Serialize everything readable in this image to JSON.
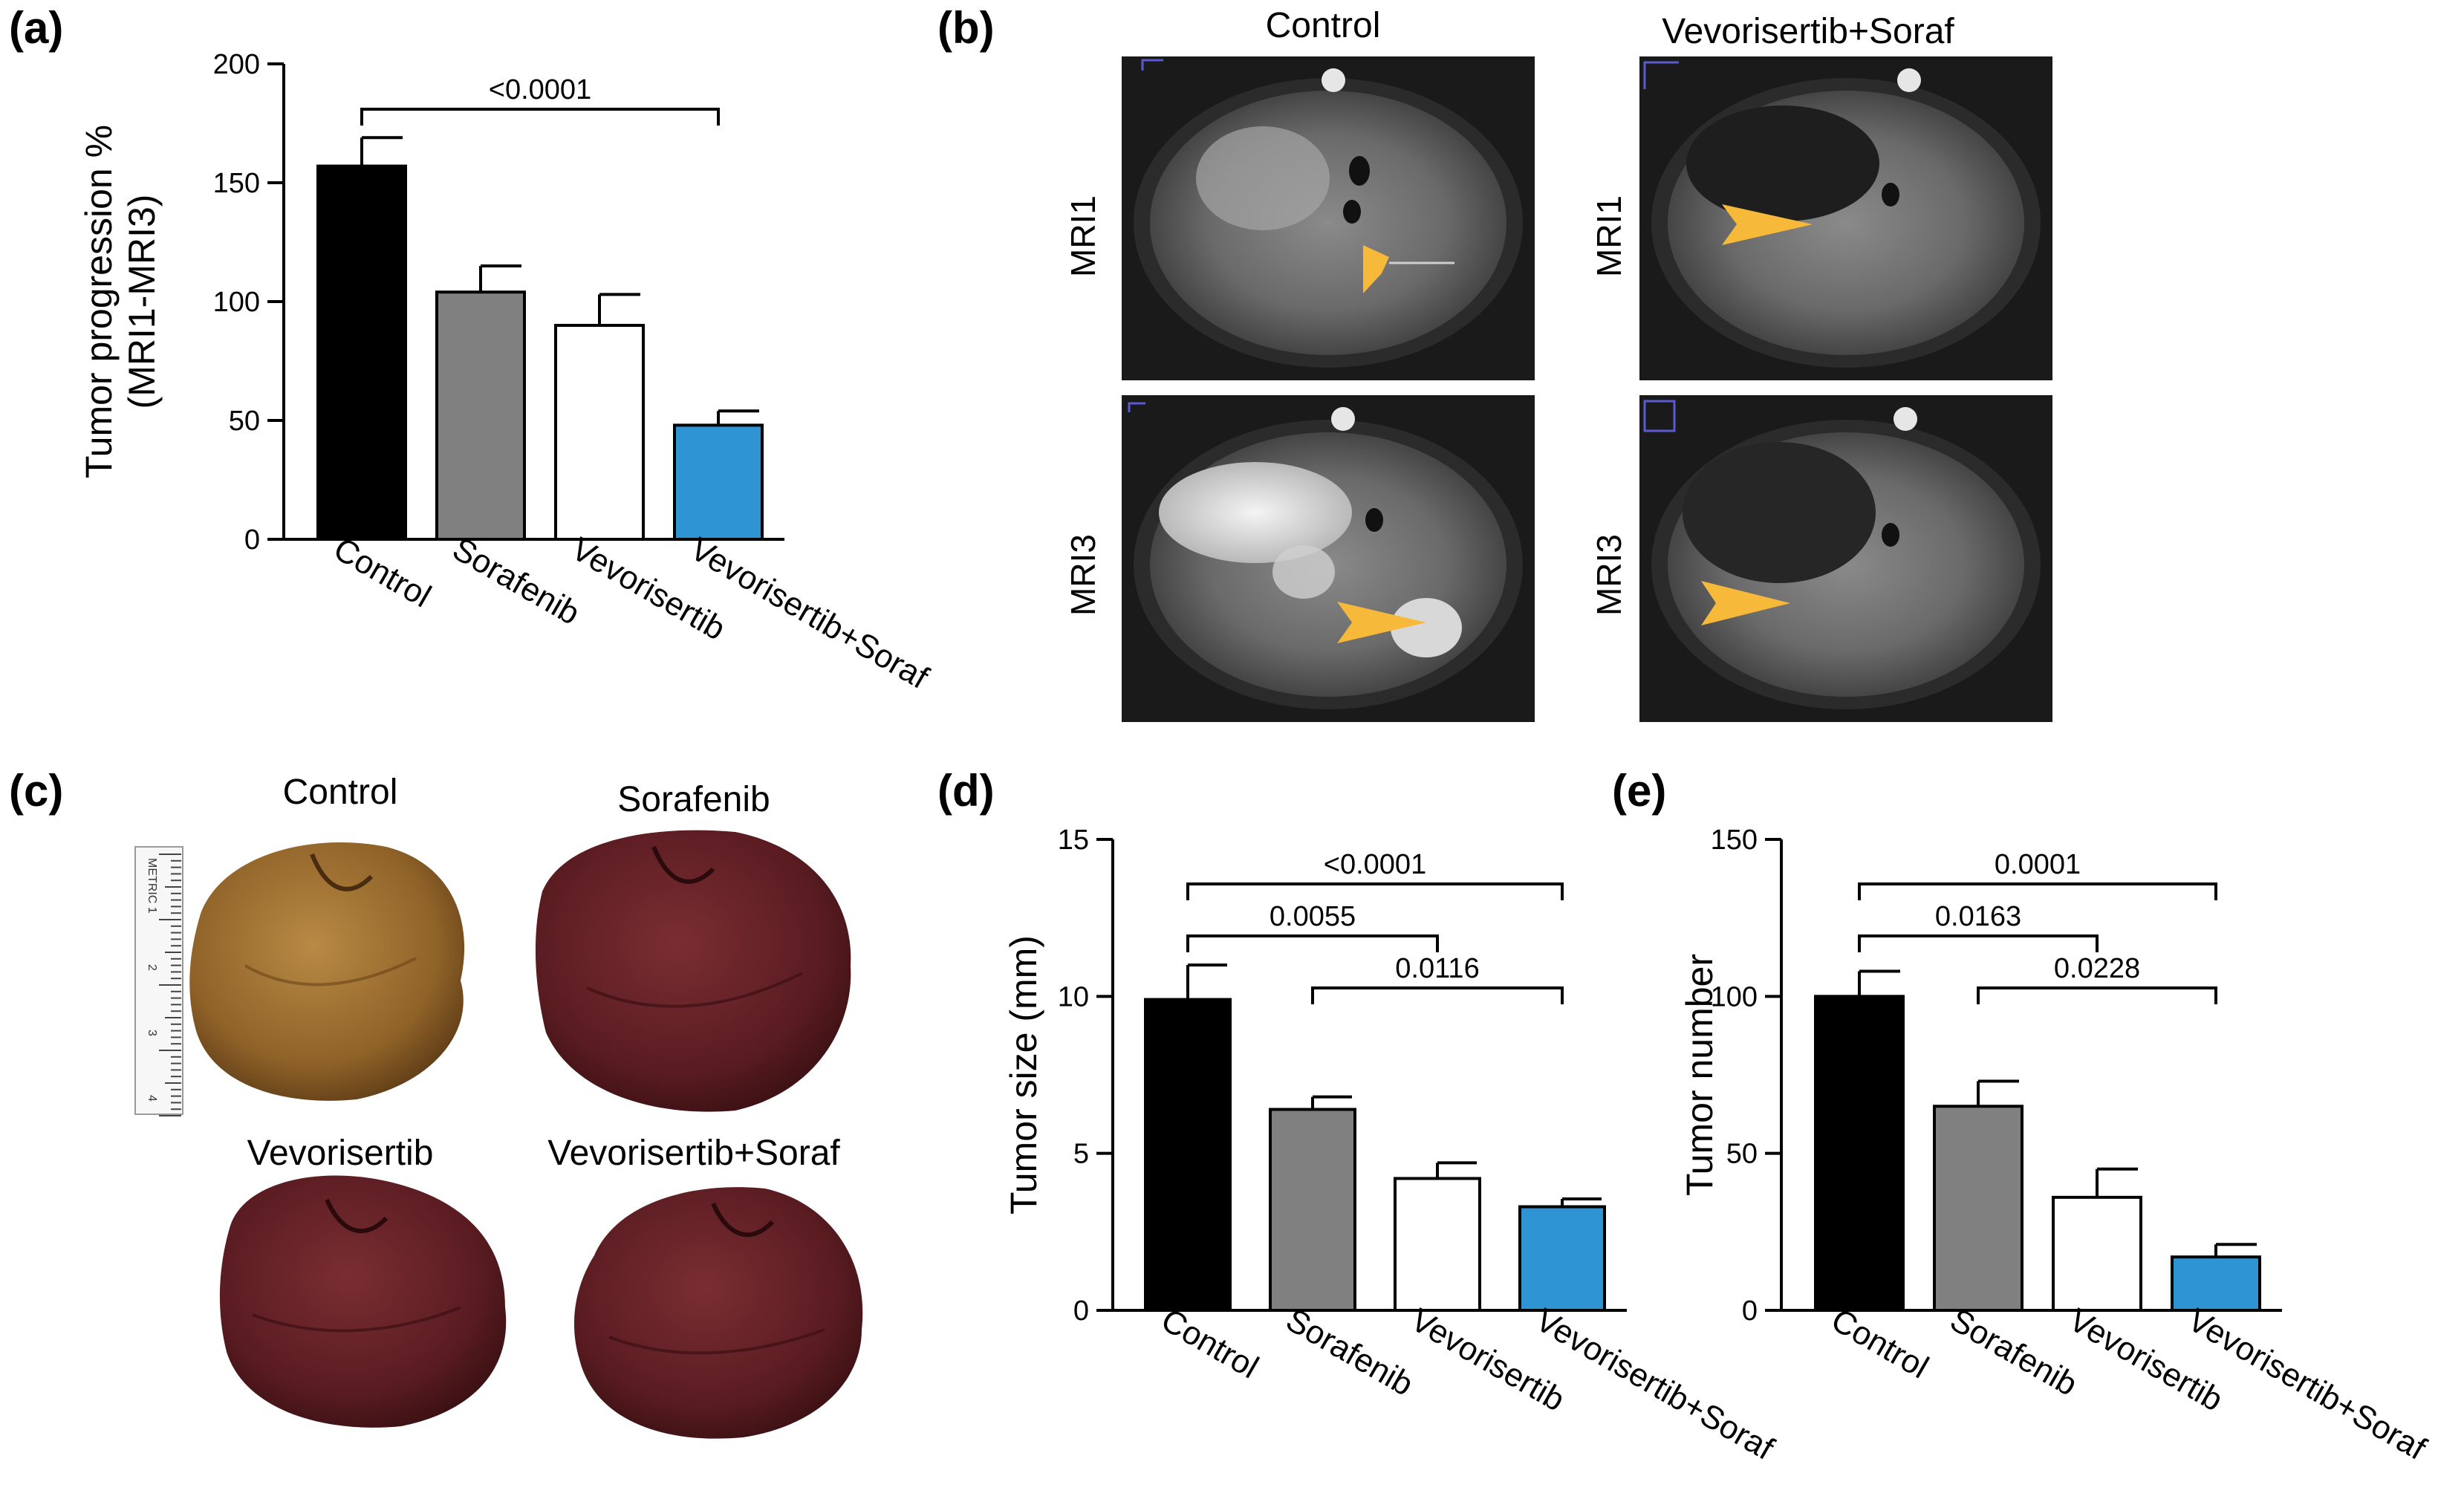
{
  "figure": {
    "panels": {
      "a": "(a)",
      "b": "(b)",
      "c": "(c)",
      "d": "(d)",
      "e": "(e)"
    }
  },
  "chart_data": [
    {
      "id": "a",
      "type": "bar",
      "ylabel_line1": "Tumor progression %",
      "ylabel_line2": "(MRI1-MRI3)",
      "categories": [
        "Control",
        "Sorafenib",
        "Vevorisertib",
        "Vevorisertib+Soraf"
      ],
      "values": [
        157,
        104,
        90,
        48
      ],
      "errors": [
        12,
        11,
        13,
        6
      ],
      "colors": [
        "#000000",
        "#808080",
        "#ffffff",
        "#2f94d3"
      ],
      "ylim": [
        0,
        200
      ],
      "yticks": [
        0,
        50,
        100,
        150,
        200
      ],
      "comparisons": [
        {
          "from": 0,
          "to": 3,
          "label": "<0.0001"
        }
      ]
    },
    {
      "id": "d",
      "type": "bar",
      "ylabel": "Tumor size (mm)",
      "categories": [
        "Control",
        "Sorafenib",
        "Vevorisertib",
        "Vevorisertib+Soraf"
      ],
      "values": [
        9.9,
        6.4,
        4.2,
        3.3
      ],
      "errors": [
        1.1,
        0.4,
        0.5,
        0.25
      ],
      "colors": [
        "#000000",
        "#808080",
        "#ffffff",
        "#2f94d3"
      ],
      "ylim": [
        0,
        15
      ],
      "yticks": [
        0,
        5,
        10,
        15
      ],
      "comparisons": [
        {
          "from": 0,
          "to": 3,
          "label": "<0.0001"
        },
        {
          "from": 0,
          "to": 2,
          "label": "0.0055"
        },
        {
          "from": 1,
          "to": 3,
          "label": "0.0116"
        }
      ]
    },
    {
      "id": "e",
      "type": "bar",
      "ylabel": "Tumor number",
      "categories": [
        "Control",
        "Sorafenib",
        "Vevorisertib",
        "Vevorisertib+Soraf"
      ],
      "values": [
        100,
        65,
        36,
        17
      ],
      "errors": [
        8,
        8,
        9,
        4
      ],
      "colors": [
        "#000000",
        "#808080",
        "#ffffff",
        "#2f94d3"
      ],
      "ylim": [
        0,
        150
      ],
      "yticks": [
        0,
        50,
        100,
        150
      ],
      "comparisons": [
        {
          "from": 0,
          "to": 3,
          "label": "0.0001"
        },
        {
          "from": 0,
          "to": 2,
          "label": "0.0163"
        },
        {
          "from": 1,
          "to": 3,
          "label": "0.0228"
        }
      ]
    }
  ],
  "mri": {
    "columns": [
      "Control",
      "Vevorisertib+Soraf"
    ],
    "rows": [
      "MRI1",
      "MRI3"
    ]
  },
  "livers": {
    "labels": [
      "Control",
      "Sorafenib",
      "Vevorisertib",
      "Vevorisertib+Soraf"
    ],
    "ruler_text": "METRIC 1",
    "ruler_marks": [
      "2",
      "3",
      "4"
    ]
  },
  "colors": {
    "arrow": "#f6b93a",
    "liver_control": "#9a6a2c",
    "liver_treated": "#5c1e22"
  }
}
